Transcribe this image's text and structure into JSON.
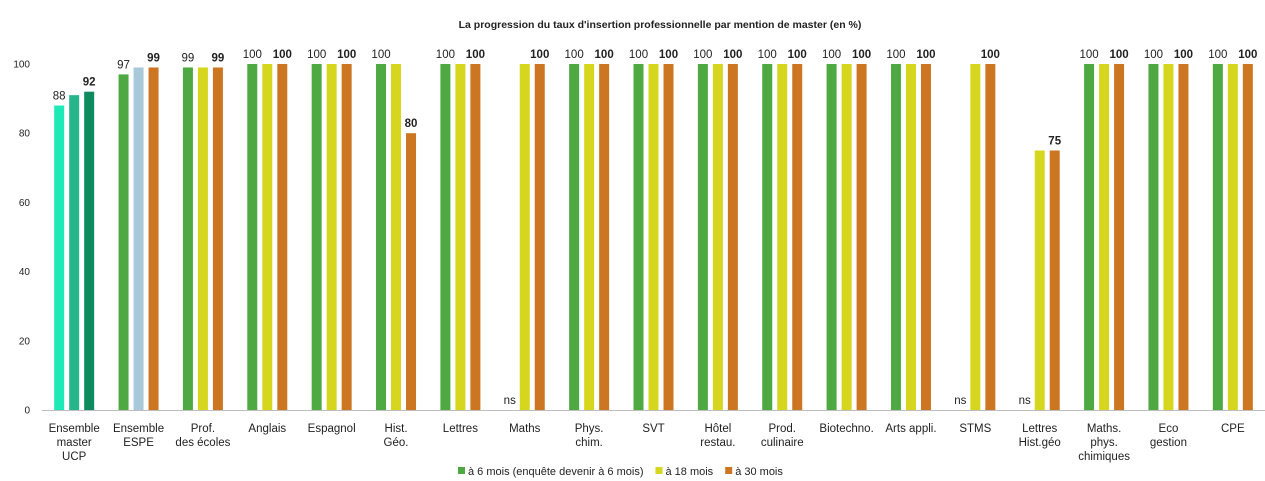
{
  "chart_data": {
    "type": "bar",
    "title": "La progression du taux d'insertion professionnelle par mention de master (en %)",
    "xlabel": "",
    "ylabel": "",
    "ylim": [
      0,
      100
    ],
    "yticks": [
      0,
      20,
      40,
      60,
      80,
      100
    ],
    "grid": false,
    "legend_position": "bottom",
    "categories": [
      [
        "Ensemble",
        "master",
        "UCP"
      ],
      [
        "Ensemble",
        "ESPE"
      ],
      [
        "Prof.",
        "des écoles"
      ],
      [
        "Anglais"
      ],
      [
        "Espagnol"
      ],
      [
        "Hist.",
        "Géo."
      ],
      [
        "Lettres"
      ],
      [
        "Maths"
      ],
      [
        "Phys.",
        "chim."
      ],
      [
        "SVT"
      ],
      [
        "Hôtel",
        "restau."
      ],
      [
        "Prod.",
        "culinaire"
      ],
      [
        "Biotechno."
      ],
      [
        "Arts appli."
      ],
      [
        "STMS"
      ],
      [
        "Lettres",
        "Hist.géo"
      ],
      [
        "Maths.",
        "phys.",
        "chimiques"
      ],
      [
        "Eco",
        "gestion"
      ],
      [
        "CPE"
      ]
    ],
    "series": [
      {
        "name": "à 6 mois (enquête devenir à 6 mois)",
        "color": "#4ea942",
        "values": [
          88,
          97,
          99,
          100,
          100,
          100,
          100,
          null,
          100,
          100,
          100,
          100,
          100,
          100,
          null,
          null,
          100,
          100,
          100
        ]
      },
      {
        "name": "à 18 mois",
        "color": "#d6d61f",
        "values": [
          91,
          99,
          99,
          100,
          100,
          100,
          100,
          100,
          100,
          100,
          100,
          100,
          100,
          100,
          100,
          75,
          100,
          100,
          100
        ]
      },
      {
        "name": "à 30 mois",
        "color": "#cc7622",
        "values": [
          92,
          99,
          99,
          100,
          100,
          80,
          100,
          100,
          100,
          100,
          100,
          100,
          100,
          100,
          100,
          75,
          100,
          100,
          100
        ]
      }
    ],
    "group_colors": {
      "0": [
        "#1de9b6",
        "#27b58c",
        "#0e8a5f"
      ],
      "1": [
        "#4ea942",
        "#a9c8da",
        "#cc7622"
      ]
    },
    "missing_label": "ns",
    "data_labels": [
      [
        "88",
        null,
        "92"
      ],
      [
        "97",
        null,
        "99"
      ],
      [
        "99",
        null,
        "99"
      ],
      [
        "100",
        null,
        "100"
      ],
      [
        "100",
        null,
        "100"
      ],
      [
        "100",
        null,
        "80"
      ],
      [
        "100",
        null,
        "100"
      ],
      [
        "ns",
        null,
        "100"
      ],
      [
        "100",
        null,
        "100"
      ],
      [
        "100",
        null,
        "100"
      ],
      [
        "100",
        null,
        "100"
      ],
      [
        "100",
        null,
        "100"
      ],
      [
        "100",
        null,
        "100"
      ],
      [
        "100",
        null,
        "100"
      ],
      [
        "ns",
        null,
        "100"
      ],
      [
        "ns",
        null,
        "75"
      ],
      [
        "100",
        null,
        "100"
      ],
      [
        "100",
        null,
        "100"
      ],
      [
        "100",
        null,
        "100"
      ]
    ]
  }
}
